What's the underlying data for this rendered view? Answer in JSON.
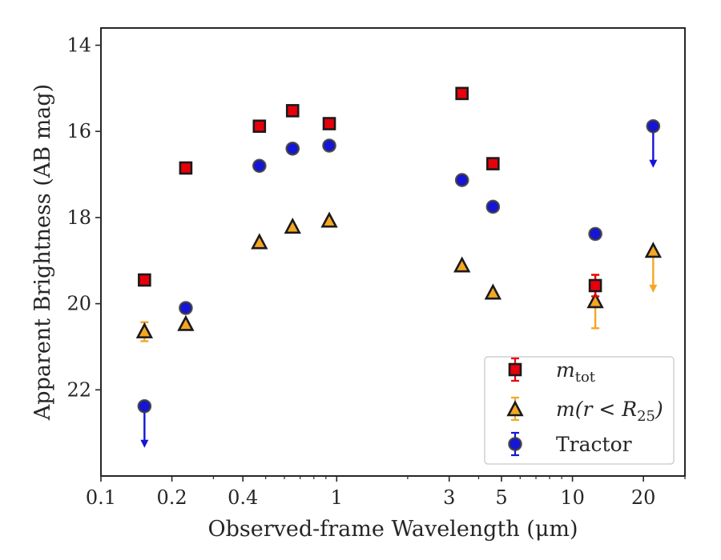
{
  "chart_data": {
    "type": "scatter",
    "xlabel": "Observed-frame Wavelength (μm)",
    "ylabel": "Apparent Brightness (AB mag)",
    "xscale": "log",
    "xlim": [
      0.1,
      30
    ],
    "ylim": [
      24,
      13.6
    ],
    "y_inverted": true,
    "grid": false,
    "legend_position": "lower-right",
    "x_ticks": [
      {
        "value": 0.1,
        "label": "0.1"
      },
      {
        "value": 0.2,
        "label": "0.2"
      },
      {
        "value": 0.4,
        "label": "0.4"
      },
      {
        "value": 1,
        "label": "1"
      },
      {
        "value": 3,
        "label": "3"
      },
      {
        "value": 5,
        "label": "5"
      },
      {
        "value": 10,
        "label": "10"
      },
      {
        "value": 20,
        "label": "20"
      }
    ],
    "y_ticks": [
      {
        "value": 14,
        "label": "14"
      },
      {
        "value": 16,
        "label": "16"
      },
      {
        "value": 18,
        "label": "18"
      },
      {
        "value": 20,
        "label": "20"
      },
      {
        "value": 22,
        "label": "22"
      }
    ],
    "series": [
      {
        "name": "m_tot",
        "legend_label": {
          "base": "m",
          "sub": "tot"
        },
        "marker": "square",
        "color": "#e8000b",
        "edge_color": "#1a1a1a",
        "points": [
          {
            "x": 0.153,
            "y": 19.45
          },
          {
            "x": 0.229,
            "y": 16.85
          },
          {
            "x": 0.47,
            "y": 15.88
          },
          {
            "x": 0.65,
            "y": 15.52
          },
          {
            "x": 0.93,
            "y": 15.82
          },
          {
            "x": 3.4,
            "y": 15.12
          },
          {
            "x": 4.6,
            "y": 16.75
          },
          {
            "x": 12.5,
            "y": 19.58,
            "yerr": 0.25
          }
        ]
      },
      {
        "name": "m(r < R_25)",
        "legend_label": {
          "pre": "m(r < R",
          "sub": "25",
          "post": ")"
        },
        "marker": "triangle",
        "color": "#f5a623",
        "edge_color": "#1a1a1a",
        "points": [
          {
            "x": 0.153,
            "y": 20.65,
            "yerr": 0.22
          },
          {
            "x": 0.229,
            "y": 20.48
          },
          {
            "x": 0.47,
            "y": 18.58
          },
          {
            "x": 0.65,
            "y": 18.22
          },
          {
            "x": 0.93,
            "y": 18.08
          },
          {
            "x": 3.4,
            "y": 19.12
          },
          {
            "x": 4.6,
            "y": 19.75
          },
          {
            "x": 12.5,
            "y": 19.95,
            "yerr": 0.62
          },
          {
            "x": 22,
            "y": 18.78,
            "upper_limit": true
          }
        ]
      },
      {
        "name": "Tractor",
        "legend_label": {
          "base": "Tractor"
        },
        "marker": "circle",
        "color": "#1515d8",
        "edge_color": "#3a3a3a",
        "points": [
          {
            "x": 0.153,
            "y": 22.38,
            "upper_limit": true
          },
          {
            "x": 0.229,
            "y": 20.1
          },
          {
            "x": 0.47,
            "y": 16.8
          },
          {
            "x": 0.65,
            "y": 16.4
          },
          {
            "x": 0.93,
            "y": 16.33
          },
          {
            "x": 3.4,
            "y": 17.13
          },
          {
            "x": 4.6,
            "y": 17.75
          },
          {
            "x": 12.5,
            "y": 18.38
          },
          {
            "x": 22,
            "y": 15.88,
            "upper_limit": true
          }
        ]
      }
    ]
  }
}
